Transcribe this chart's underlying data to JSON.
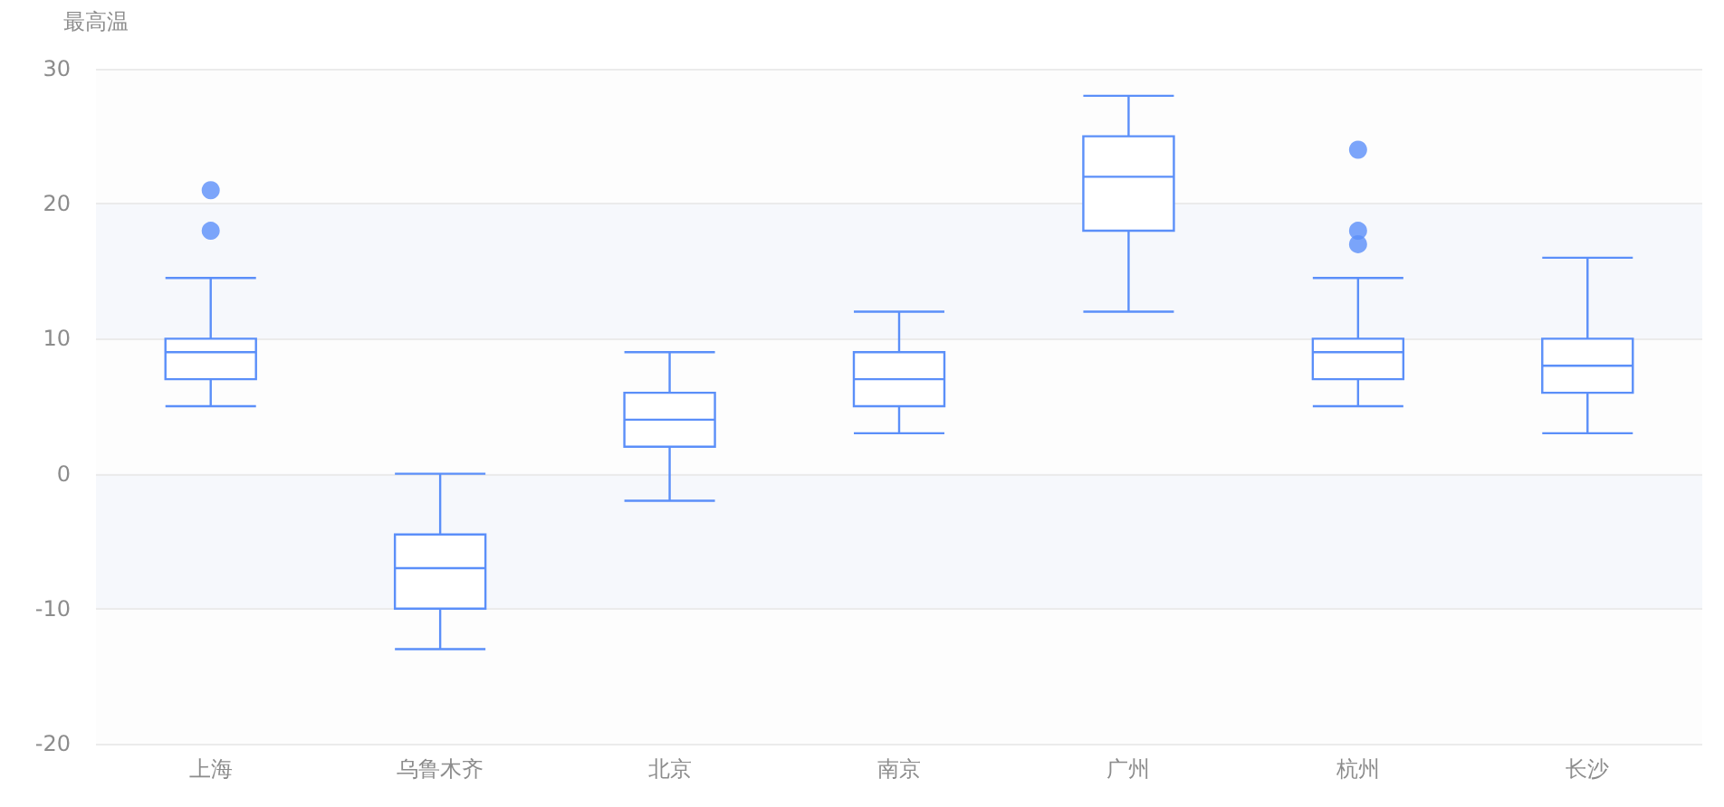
{
  "chart_data": {
    "type": "box",
    "ylabel": "最高温",
    "categories": [
      "上海",
      "乌鲁木齐",
      "北京",
      "南京",
      "广州",
      "杭州",
      "长沙"
    ],
    "boxes": [
      {
        "low": 5,
        "q1": 7,
        "median": 9,
        "q3": 10,
        "high": 14.5,
        "outliers": [
          21,
          18
        ]
      },
      {
        "low": -13,
        "q1": -10,
        "median": -7,
        "q3": -4.5,
        "high": 0
      },
      {
        "low": -2,
        "q1": 2,
        "median": 4,
        "q3": 6,
        "high": 9
      },
      {
        "low": 3,
        "q1": 5,
        "median": 7,
        "q3": 9,
        "high": 12
      },
      {
        "low": 12,
        "q1": 18,
        "median": 22,
        "q3": 25,
        "high": 28
      },
      {
        "low": 5,
        "q1": 7,
        "median": 9,
        "q3": 10,
        "high": 14.5,
        "outliers": [
          24,
          18,
          17
        ]
      },
      {
        "low": 3,
        "q1": 6,
        "median": 8,
        "q3": 10,
        "high": 16
      }
    ],
    "color": "#5b8ff9",
    "ylim": [
      -20,
      30
    ],
    "yticks": [
      -20,
      -10,
      0,
      10,
      20,
      30
    ],
    "grid": "y"
  }
}
